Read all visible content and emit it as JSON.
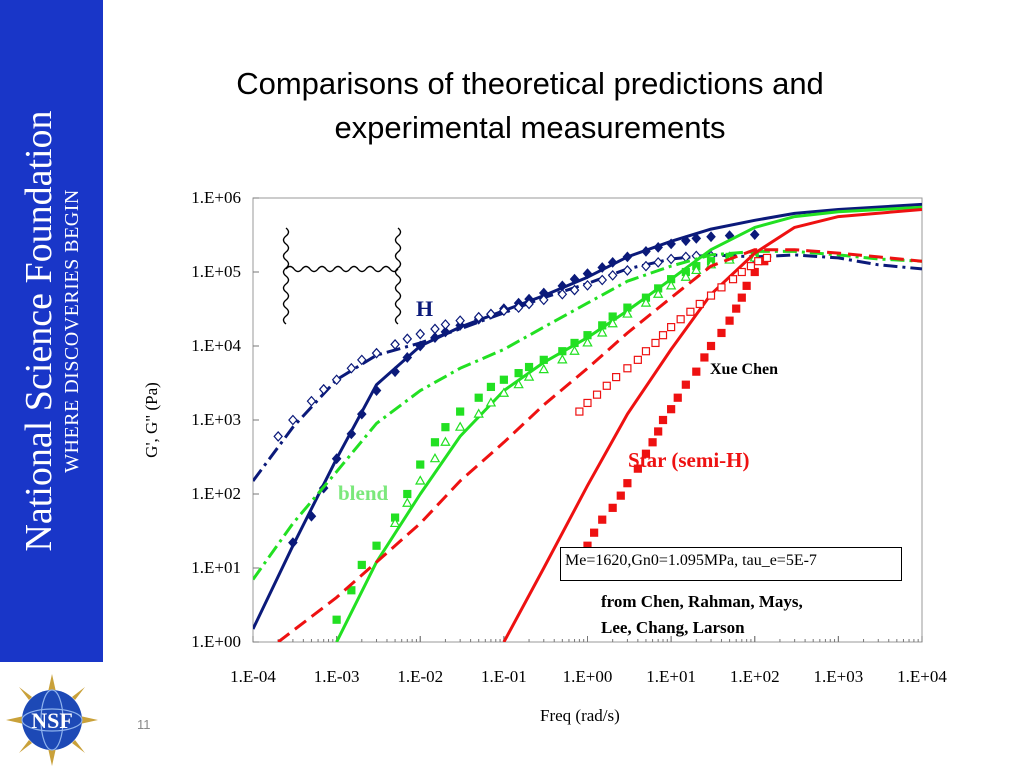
{
  "sidebar": {
    "title": "National Science Foundation",
    "tagline": "WHERE DISCOVERIES BEGIN",
    "logo_text": "NSF"
  },
  "slide_number": "11",
  "slide_title_line1": "Comparisons of theoretical predictions and",
  "slide_title_line2": "experimental measurements",
  "chart_data": {
    "type": "scatter",
    "xlabel": "Freq (rad/s)",
    "ylabel": "G', G\" (Pa)",
    "x_scale": "log",
    "y_scale": "log",
    "xlim": [
      0.0001,
      10000
    ],
    "ylim": [
      1,
      1000000
    ],
    "x_ticks": [
      "1.E-04",
      "1.E-03",
      "1.E-02",
      "1.E-01",
      "1.E+00",
      "1.E+01",
      "1.E+02",
      "1.E+03",
      "1.E+04"
    ],
    "y_ticks": [
      "1.E+06",
      "1.E+05",
      "1.E+04",
      "1.E+03",
      "1.E+02",
      "1.E+01",
      "1.E+00"
    ],
    "colors": {
      "h": "#0b1a7a",
      "blend": "#22e022",
      "star": "#ee1111"
    },
    "annotations": {
      "h": "H",
      "blend": "blend",
      "author": "Xue Chen",
      "star": "Star (semi-H)",
      "params": "Me=1620,Gn0=1.095MPa, tau_e=5E-7",
      "ref_line1": "from Chen, Rahman, Mays,",
      "ref_line2": "Lee, Chang, Larson"
    },
    "series": [
      {
        "group": "h",
        "kind": "theory-G'",
        "style": "solid",
        "points": [
          [
            0.0001,
            1.5
          ],
          [
            0.0003,
            20
          ],
          [
            0.001,
            300
          ],
          [
            0.003,
            3000
          ],
          [
            0.01,
            10000
          ],
          [
            0.03,
            18000
          ],
          [
            0.1,
            30000
          ],
          [
            0.3,
            48000
          ],
          [
            1,
            85000
          ],
          [
            3,
            160000
          ],
          [
            10,
            260000
          ],
          [
            30,
            380000
          ],
          [
            100,
            500000
          ],
          [
            300,
            620000
          ],
          [
            1000,
            700000
          ],
          [
            10000,
            820000
          ]
        ]
      },
      {
        "group": "h",
        "kind": "theory-G\"",
        "style": "dash-dot",
        "points": [
          [
            0.0001,
            150
          ],
          [
            0.0003,
            800
          ],
          [
            0.001,
            3500
          ],
          [
            0.003,
            7500
          ],
          [
            0.01,
            11000
          ],
          [
            0.03,
            17000
          ],
          [
            0.1,
            28000
          ],
          [
            0.3,
            45000
          ],
          [
            1,
            70000
          ],
          [
            3,
            110000
          ],
          [
            10,
            150000
          ],
          [
            30,
            170000
          ],
          [
            100,
            160000
          ],
          [
            300,
            170000
          ],
          [
            1000,
            155000
          ],
          [
            3000,
            125000
          ],
          [
            10000,
            110000
          ]
        ]
      },
      {
        "group": "h",
        "kind": "exp-G'",
        "style": "filled-diamond",
        "points": [
          [
            0.0003,
            22
          ],
          [
            0.0005,
            50
          ],
          [
            0.0007,
            120
          ],
          [
            0.001,
            300
          ],
          [
            0.0015,
            650
          ],
          [
            0.002,
            1200
          ],
          [
            0.003,
            2500
          ],
          [
            0.005,
            4500
          ],
          [
            0.007,
            7000
          ],
          [
            0.01,
            10000
          ],
          [
            0.015,
            13000
          ],
          [
            0.02,
            15500
          ],
          [
            0.03,
            19000
          ],
          [
            0.05,
            23000
          ],
          [
            0.07,
            27000
          ],
          [
            0.1,
            32000
          ],
          [
            0.15,
            38000
          ],
          [
            0.2,
            43000
          ],
          [
            0.3,
            52000
          ],
          [
            0.5,
            65000
          ],
          [
            0.7,
            80000
          ],
          [
            1,
            95000
          ],
          [
            1.5,
            115000
          ],
          [
            2,
            135000
          ],
          [
            3,
            160000
          ],
          [
            5,
            190000
          ],
          [
            7,
            215000
          ],
          [
            10,
            240000
          ],
          [
            15,
            265000
          ],
          [
            20,
            285000
          ],
          [
            30,
            300000
          ],
          [
            50,
            310000
          ],
          [
            100,
            320000
          ]
        ]
      },
      {
        "group": "h",
        "kind": "exp-G\"",
        "style": "open-diamond",
        "points": [
          [
            0.0002,
            600
          ],
          [
            0.0003,
            1000
          ],
          [
            0.0005,
            1800
          ],
          [
            0.0007,
            2600
          ],
          [
            0.001,
            3500
          ],
          [
            0.0015,
            5000
          ],
          [
            0.002,
            6500
          ],
          [
            0.003,
            8000
          ],
          [
            0.005,
            10500
          ],
          [
            0.007,
            12500
          ],
          [
            0.01,
            14500
          ],
          [
            0.015,
            17000
          ],
          [
            0.02,
            19500
          ],
          [
            0.03,
            22000
          ],
          [
            0.05,
            24500
          ],
          [
            0.07,
            27000
          ],
          [
            0.1,
            30000
          ],
          [
            0.15,
            33000
          ],
          [
            0.2,
            37000
          ],
          [
            0.3,
            42000
          ],
          [
            0.5,
            50000
          ],
          [
            0.7,
            57000
          ],
          [
            1,
            66000
          ],
          [
            1.5,
            78000
          ],
          [
            2,
            90000
          ],
          [
            3,
            105000
          ],
          [
            5,
            120000
          ],
          [
            7,
            135000
          ],
          [
            10,
            150000
          ],
          [
            15,
            160000
          ],
          [
            20,
            165000
          ],
          [
            30,
            165000
          ],
          [
            50,
            160000
          ],
          [
            100,
            150000
          ]
        ]
      },
      {
        "group": "blend",
        "kind": "theory-G'",
        "style": "solid",
        "points": [
          [
            0.001,
            1
          ],
          [
            0.003,
            12
          ],
          [
            0.01,
            100
          ],
          [
            0.03,
            600
          ],
          [
            0.1,
            2500
          ],
          [
            0.3,
            6000
          ],
          [
            1,
            13000
          ],
          [
            3,
            30000
          ],
          [
            10,
            80000
          ],
          [
            30,
            200000
          ],
          [
            100,
            400000
          ],
          [
            300,
            560000
          ],
          [
            1000,
            650000
          ],
          [
            10000,
            750000
          ]
        ]
      },
      {
        "group": "blend",
        "kind": "theory-G\"",
        "style": "dash-dot",
        "points": [
          [
            0.0001,
            7
          ],
          [
            0.0003,
            40
          ],
          [
            0.001,
            200
          ],
          [
            0.003,
            900
          ],
          [
            0.01,
            2500
          ],
          [
            0.03,
            5000
          ],
          [
            0.1,
            9000
          ],
          [
            0.3,
            18000
          ],
          [
            1,
            38000
          ],
          [
            3,
            75000
          ],
          [
            10,
            120000
          ],
          [
            30,
            170000
          ],
          [
            100,
            190000
          ],
          [
            300,
            190000
          ],
          [
            1000,
            170000
          ],
          [
            3000,
            150000
          ],
          [
            10000,
            140000
          ]
        ]
      },
      {
        "group": "blend",
        "kind": "exp-G'",
        "style": "filled-square",
        "points": [
          [
            0.001,
            2
          ],
          [
            0.0015,
            5
          ],
          [
            0.002,
            11
          ],
          [
            0.003,
            20
          ],
          [
            0.005,
            48
          ],
          [
            0.007,
            100
          ],
          [
            0.01,
            250
          ],
          [
            0.015,
            500
          ],
          [
            0.02,
            800
          ],
          [
            0.03,
            1300
          ],
          [
            0.05,
            2000
          ],
          [
            0.07,
            2800
          ],
          [
            0.1,
            3500
          ],
          [
            0.15,
            4300
          ],
          [
            0.2,
            5200
          ],
          [
            0.3,
            6500
          ],
          [
            0.5,
            8500
          ],
          [
            0.7,
            11000
          ],
          [
            1,
            14000
          ],
          [
            1.5,
            19000
          ],
          [
            2,
            25000
          ],
          [
            3,
            33000
          ],
          [
            5,
            45000
          ],
          [
            7,
            60000
          ],
          [
            10,
            80000
          ],
          [
            15,
            100000
          ],
          [
            20,
            120000
          ],
          [
            30,
            140000
          ],
          [
            50,
            160000
          ],
          [
            100,
            170000
          ]
        ]
      },
      {
        "group": "blend",
        "kind": "exp-G\"",
        "style": "open-triangle",
        "points": [
          [
            0.005,
            40
          ],
          [
            0.007,
            75
          ],
          [
            0.01,
            150
          ],
          [
            0.015,
            300
          ],
          [
            0.02,
            500
          ],
          [
            0.03,
            800
          ],
          [
            0.05,
            1200
          ],
          [
            0.07,
            1700
          ],
          [
            0.1,
            2300
          ],
          [
            0.15,
            3000
          ],
          [
            0.2,
            3800
          ],
          [
            0.3,
            4800
          ],
          [
            0.5,
            6500
          ],
          [
            0.7,
            8500
          ],
          [
            1,
            11000
          ],
          [
            1.5,
            15000
          ],
          [
            2,
            20000
          ],
          [
            3,
            27000
          ],
          [
            5,
            38000
          ],
          [
            7,
            50000
          ],
          [
            10,
            65000
          ],
          [
            15,
            85000
          ],
          [
            20,
            105000
          ],
          [
            30,
            125000
          ],
          [
            50,
            145000
          ],
          [
            100,
            155000
          ]
        ]
      },
      {
        "group": "star",
        "kind": "theory-G'",
        "style": "solid",
        "points": [
          [
            0.1,
            1
          ],
          [
            0.3,
            10
          ],
          [
            1,
            130
          ],
          [
            3,
            1200
          ],
          [
            10,
            9000
          ],
          [
            30,
            50000
          ],
          [
            100,
            180000
          ],
          [
            300,
            400000
          ],
          [
            1000,
            560000
          ],
          [
            10000,
            700000
          ]
        ]
      },
      {
        "group": "star",
        "kind": "theory-G\"",
        "style": "dash",
        "points": [
          [
            0.0002,
            1
          ],
          [
            0.001,
            4
          ],
          [
            0.003,
            12
          ],
          [
            0.01,
            40
          ],
          [
            0.03,
            150
          ],
          [
            0.1,
            500
          ],
          [
            0.3,
            1600
          ],
          [
            1,
            5000
          ],
          [
            3,
            15000
          ],
          [
            10,
            45000
          ],
          [
            30,
            120000
          ],
          [
            100,
            200000
          ],
          [
            300,
            200000
          ],
          [
            1000,
            180000
          ],
          [
            3000,
            160000
          ],
          [
            10000,
            140000
          ]
        ]
      },
      {
        "group": "star",
        "kind": "exp-G'",
        "style": "filled-square",
        "points": [
          [
            1,
            20
          ],
          [
            1.2,
            30
          ],
          [
            1.5,
            45
          ],
          [
            2,
            65
          ],
          [
            2.5,
            95
          ],
          [
            3,
            140
          ],
          [
            4,
            220
          ],
          [
            5,
            350
          ],
          [
            6,
            500
          ],
          [
            7,
            700
          ],
          [
            8,
            1000
          ],
          [
            10,
            1400
          ],
          [
            12,
            2000
          ],
          [
            15,
            3000
          ],
          [
            20,
            4500
          ],
          [
            25,
            7000
          ],
          [
            30,
            10000
          ],
          [
            40,
            15000
          ],
          [
            50,
            22000
          ],
          [
            60,
            32000
          ],
          [
            70,
            45000
          ],
          [
            80,
            65000
          ],
          [
            100,
            100000
          ],
          [
            130,
            140000
          ]
        ]
      },
      {
        "group": "star",
        "kind": "exp-G\"",
        "style": "open-square",
        "points": [
          [
            0.8,
            1300
          ],
          [
            1,
            1700
          ],
          [
            1.3,
            2200
          ],
          [
            1.7,
            2900
          ],
          [
            2.2,
            3800
          ],
          [
            3,
            5000
          ],
          [
            4,
            6500
          ],
          [
            5,
            8500
          ],
          [
            6.5,
            11000
          ],
          [
            8,
            14000
          ],
          [
            10,
            18000
          ],
          [
            13,
            23000
          ],
          [
            17,
            29000
          ],
          [
            22,
            37000
          ],
          [
            30,
            48000
          ],
          [
            40,
            62000
          ],
          [
            55,
            80000
          ],
          [
            70,
            100000
          ],
          [
            90,
            120000
          ],
          [
            110,
            140000
          ],
          [
            140,
            155000
          ]
        ]
      }
    ]
  }
}
